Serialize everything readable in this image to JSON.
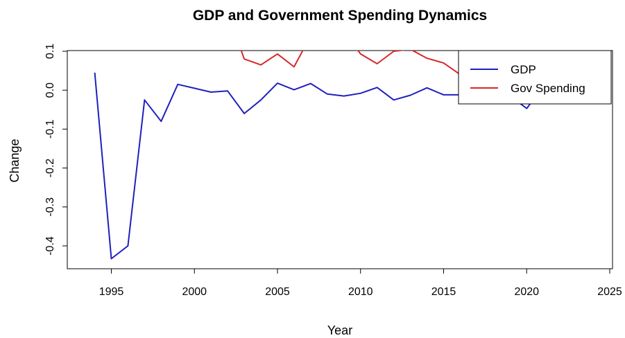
{
  "chart_data": {
    "type": "line",
    "title": "GDP and Government Spending Dynamics",
    "xlabel": "Year",
    "ylabel": "Change",
    "xlim": [
      1993,
      2025
    ],
    "ylim": [
      -0.45,
      0.1
    ],
    "x_ticks": [
      "1995",
      "2000",
      "2005",
      "2010",
      "2015",
      "2020",
      "2025"
    ],
    "y_ticks": [
      "-0.4",
      "-0.3",
      "-0.2",
      "-0.1",
      "0.0",
      "0.1"
    ],
    "grid": false,
    "legend_position": "top-right",
    "series": [
      {
        "name": "GDP",
        "color": "#1f1fbf",
        "x": [
          1994,
          1995,
          1996,
          1997,
          1998,
          1999,
          2000,
          2001,
          2002,
          2003,
          2004,
          2005,
          2006,
          2007,
          2008,
          2009,
          2010,
          2011,
          2012,
          2013,
          2014,
          2015,
          2016,
          2017,
          2018,
          2019,
          2020,
          2021,
          2022
        ],
        "y": [
          0.045,
          -0.433,
          -0.4,
          -0.025,
          -0.08,
          0.015,
          0.005,
          -0.005,
          -0.002,
          -0.06,
          -0.025,
          0.018,
          0.001,
          0.017,
          -0.01,
          -0.015,
          -0.008,
          0.007,
          -0.025,
          -0.013,
          0.006,
          -0.012,
          -0.012,
          -0.01,
          -0.01,
          -0.015,
          -0.047,
          0.01,
          0.005
        ]
      },
      {
        "name": "Gov Spending",
        "color": "#d62728",
        "x": [
          2002,
          2003,
          2004,
          2005,
          2006,
          2007,
          2008,
          2009,
          2010,
          2011,
          2012,
          2013,
          2014,
          2015,
          2016,
          2017
        ],
        "y": [
          0.2,
          0.08,
          0.065,
          0.093,
          0.06,
          0.14,
          0.16,
          0.15,
          0.093,
          0.068,
          0.1,
          0.105,
          0.082,
          0.07,
          0.04,
          0.02
        ]
      }
    ]
  }
}
